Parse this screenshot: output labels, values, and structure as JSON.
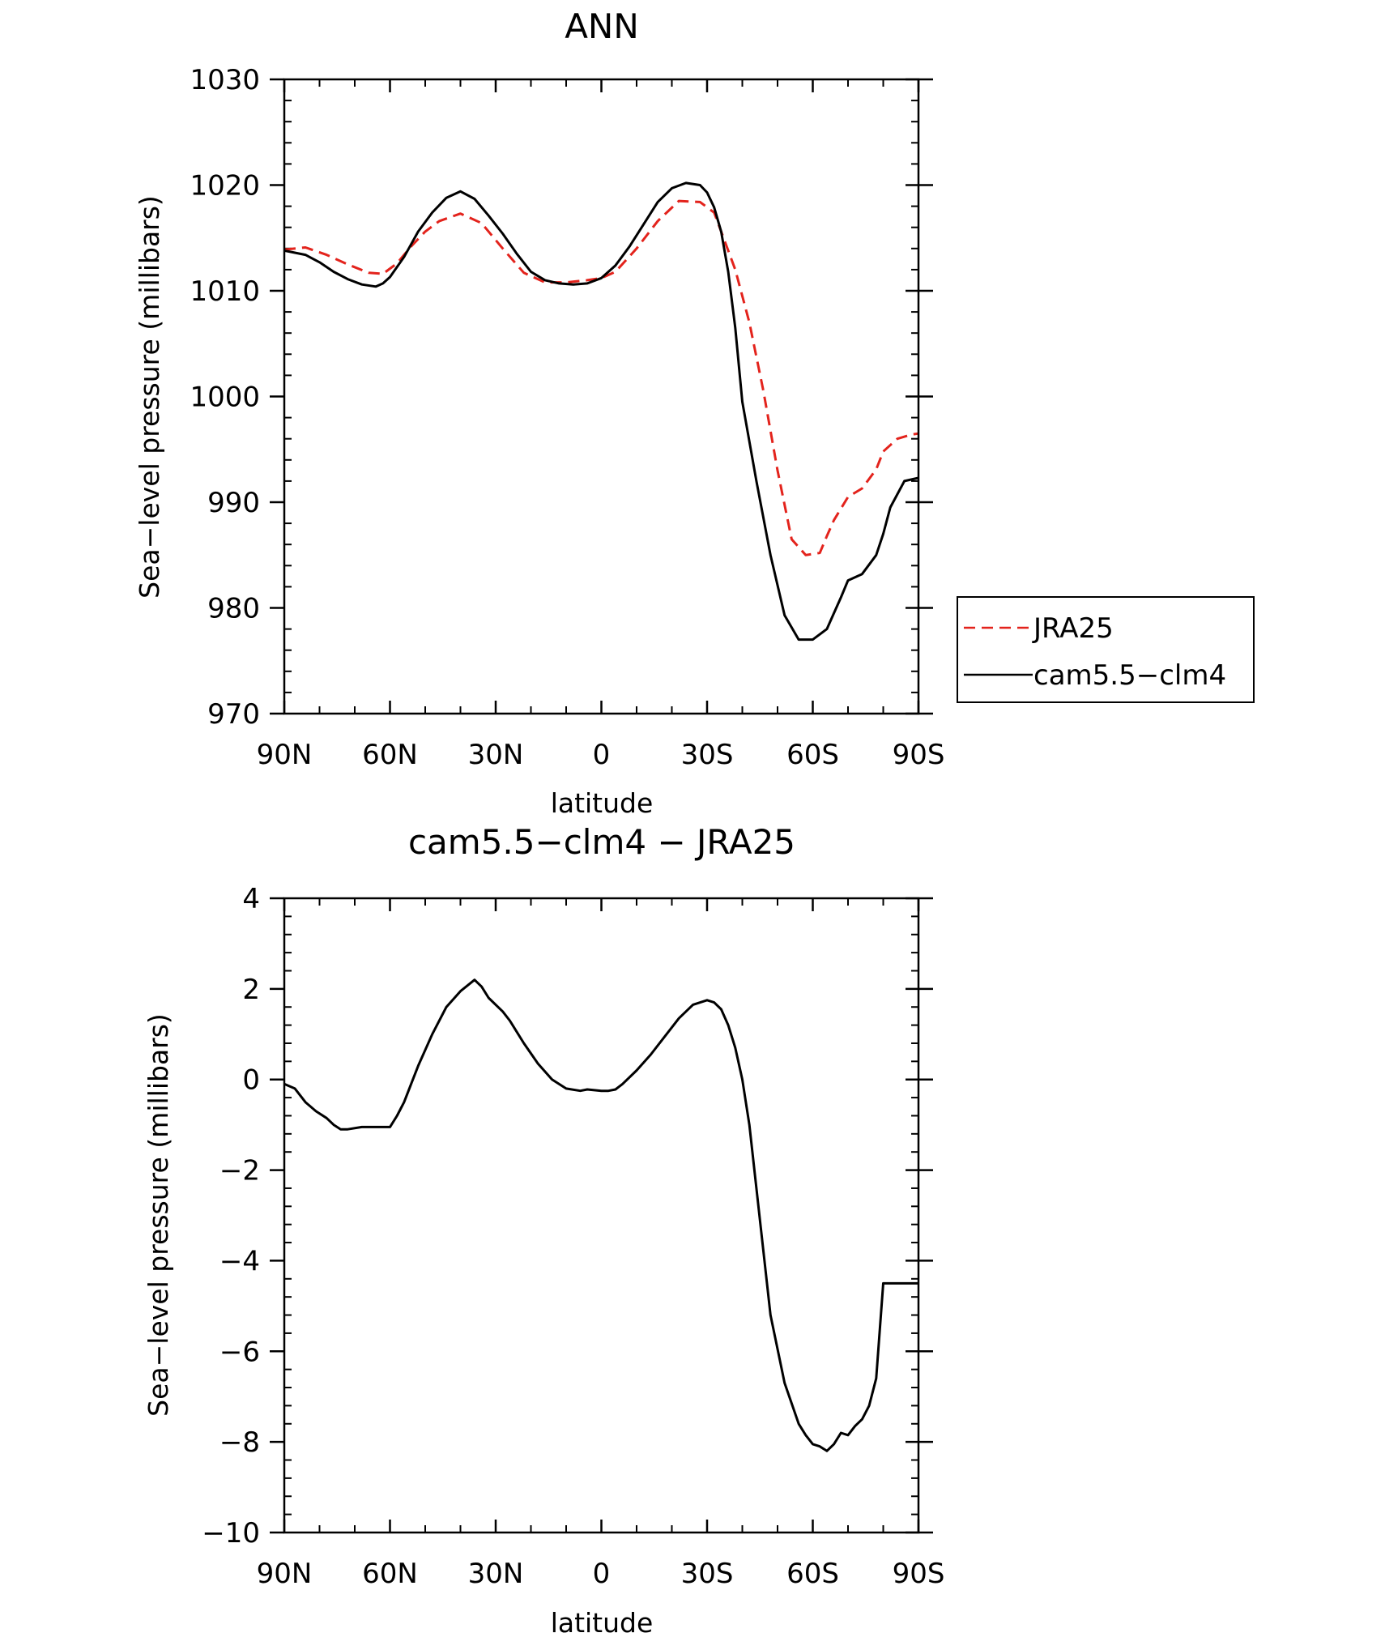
{
  "chart_data": [
    {
      "type": "line",
      "title": "ANN",
      "xlabel": "latitude",
      "ylabel": "Sea−level pressure (millibars)",
      "xlim": [
        90,
        -90
      ],
      "ylim": [
        970,
        1030
      ],
      "x_ticks": [
        90,
        60,
        30,
        0,
        -30,
        -60,
        -90
      ],
      "x_tick_labels": [
        "90N",
        "60N",
        "30N",
        "0",
        "30S",
        "60S",
        "90S"
      ],
      "y_ticks": [
        970,
        980,
        990,
        1000,
        1010,
        1020,
        1030
      ],
      "y_tick_labels": [
        "970",
        "980",
        "990",
        "1000",
        "1010",
        "1020",
        "1030"
      ],
      "legend_position": "outside-right",
      "legend": [
        "JRA25",
        "cam5.5−clm4"
      ],
      "series": [
        {
          "name": "JRA25",
          "color": "#e3231c",
          "dash": "dashed",
          "x": [
            90,
            84,
            78,
            72,
            66,
            62,
            58,
            54,
            50,
            46,
            40,
            34,
            28,
            22,
            16,
            10,
            4,
            0,
            -4,
            -10,
            -16,
            -22,
            -28,
            -32,
            -34,
            -38,
            -42,
            -46,
            -50,
            -54,
            -58,
            -62,
            -64,
            -66,
            -70,
            -74,
            -78,
            -80,
            -84,
            -88,
            -90
          ],
          "values": [
            1013.9,
            1014.1,
            1013.4,
            1012.5,
            1011.7,
            1011.6,
            1012.6,
            1014.2,
            1015.6,
            1016.6,
            1017.3,
            1016.4,
            1014.0,
            1011.7,
            1010.8,
            1010.8,
            1011.0,
            1011.2,
            1011.8,
            1014.0,
            1016.6,
            1018.5,
            1018.4,
            1017.4,
            1015.6,
            1012.0,
            1007.0,
            1000.5,
            993.0,
            986.5,
            985.0,
            985.2,
            986.8,
            988.3,
            990.5,
            991.3,
            993.1,
            994.8,
            996.0,
            996.4,
            996.5
          ]
        },
        {
          "name": "cam5.5−clm4",
          "color": "#000000",
          "dash": "solid",
          "x": [
            90,
            84,
            80,
            76,
            72,
            68,
            64,
            62,
            60,
            56,
            52,
            48,
            44,
            40,
            36,
            32,
            28,
            24,
            20,
            16,
            12,
            8,
            4,
            0,
            -4,
            -8,
            -12,
            -16,
            -20,
            -24,
            -28,
            -30,
            -32,
            -34,
            -36,
            -38,
            -40,
            -44,
            -48,
            -52,
            -56,
            -60,
            -64,
            -66,
            -68,
            -70,
            -74,
            -78,
            -80,
            -82,
            -86,
            -90
          ],
          "values": [
            1013.8,
            1013.4,
            1012.7,
            1011.8,
            1011.1,
            1010.6,
            1010.4,
            1010.7,
            1011.3,
            1013.2,
            1015.6,
            1017.4,
            1018.8,
            1019.4,
            1018.7,
            1017.1,
            1015.4,
            1013.5,
            1011.8,
            1011.0,
            1010.7,
            1010.6,
            1010.7,
            1011.2,
            1012.4,
            1014.2,
            1016.3,
            1018.4,
            1019.7,
            1020.2,
            1020.0,
            1019.3,
            1017.9,
            1015.6,
            1011.8,
            1006.5,
            999.5,
            992.0,
            985.0,
            979.3,
            977.0,
            977.0,
            978.0,
            979.5,
            981.0,
            982.6,
            983.2,
            985.0,
            987.0,
            989.5,
            992.0,
            992.3
          ]
        }
      ]
    },
    {
      "type": "line",
      "title": "cam5.5−clm4 − JRA25",
      "xlabel": "latitude",
      "ylabel": "Sea−level pressure (millibars)",
      "xlim": [
        90,
        -90
      ],
      "ylim": [
        -10,
        4
      ],
      "x_ticks": [
        90,
        60,
        30,
        0,
        -30,
        -60,
        -90
      ],
      "x_tick_labels": [
        "90N",
        "60N",
        "30N",
        "0",
        "30S",
        "60S",
        "90S"
      ],
      "y_ticks": [
        -10,
        -8,
        -6,
        -4,
        -2,
        0,
        2,
        4
      ],
      "y_tick_labels": [
        "−10",
        "−8",
        "−6",
        "−4",
        "−2",
        "0",
        "2",
        "4"
      ],
      "series": [
        {
          "color": "#000000",
          "dash": "solid",
          "x": [
            90,
            87,
            84,
            81,
            78,
            76,
            74,
            72,
            68,
            64,
            60,
            58,
            56,
            52,
            48,
            44,
            40,
            36,
            34,
            32,
            28,
            26,
            22,
            18,
            14,
            10,
            6,
            4,
            0,
            -2,
            -4,
            -6,
            -10,
            -14,
            -18,
            -22,
            -26,
            -30,
            -32,
            -34,
            -36,
            -38,
            -40,
            -42,
            -44,
            -46,
            -48,
            -52,
            -56,
            -58,
            -60,
            -62,
            -64,
            -66,
            -68,
            -70,
            -72,
            -74,
            -76,
            -78,
            -80,
            -82,
            -84,
            -86,
            -88,
            -90
          ],
          "values": [
            -0.1,
            -0.2,
            -0.5,
            -0.7,
            -0.85,
            -1.0,
            -1.1,
            -1.1,
            -1.05,
            -1.05,
            -1.05,
            -0.8,
            -0.5,
            0.3,
            1.0,
            1.6,
            1.95,
            2.2,
            2.05,
            1.8,
            1.5,
            1.3,
            0.8,
            0.35,
            0.0,
            -0.2,
            -0.25,
            -0.22,
            -0.25,
            -0.25,
            -0.22,
            -0.1,
            0.2,
            0.55,
            0.95,
            1.35,
            1.65,
            1.75,
            1.7,
            1.55,
            1.2,
            0.7,
            0.0,
            -1.0,
            -2.4,
            -3.8,
            -5.2,
            -6.7,
            -7.6,
            -7.85,
            -8.05,
            -8.1,
            -8.2,
            -8.05,
            -7.8,
            -7.85,
            -7.65,
            -7.5,
            -7.2,
            -6.6,
            -4.5,
            -4.5,
            -4.5,
            -4.5,
            -4.5,
            -4.5
          ]
        }
      ]
    }
  ]
}
